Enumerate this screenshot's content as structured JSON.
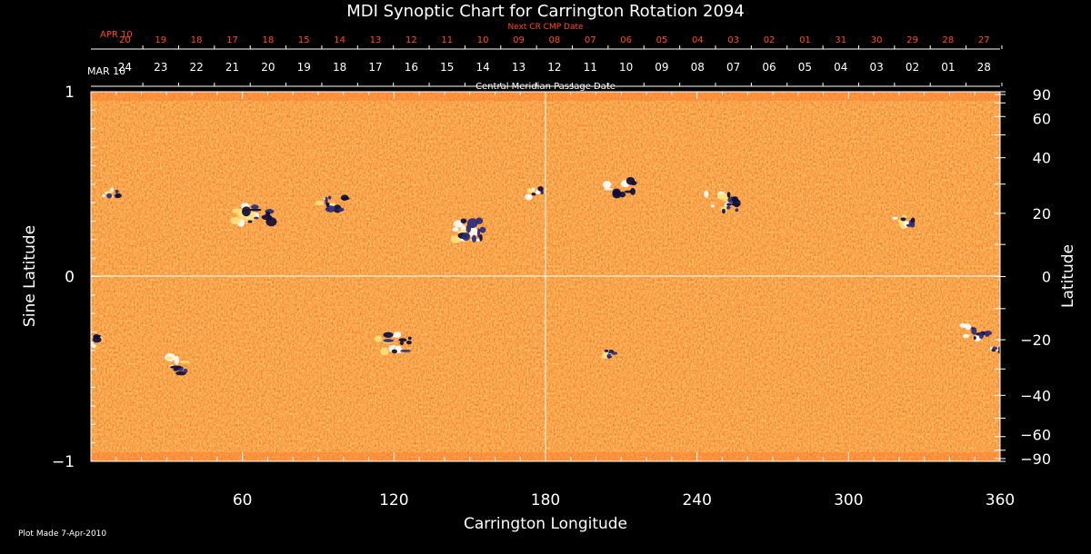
{
  "chart_data": {
    "type": "heatmap",
    "title": "MDI Synoptic Chart for Carrington Rotation 2094",
    "xlabel": "Carrington Longitude",
    "ylabel_left": "Sine Latitude",
    "ylabel_right": "Latitude",
    "xlim": [
      0,
      360
    ],
    "ylim": [
      -1,
      1
    ],
    "x_ticks": [
      60,
      120,
      180,
      240,
      300,
      360
    ],
    "left_y_ticks": [
      {
        "value": 1,
        "label": "1"
      },
      {
        "value": 0,
        "label": "0"
      },
      {
        "value": -1,
        "label": "−1"
      }
    ],
    "right_y_ticks": [
      90,
      60,
      40,
      20,
      0,
      -20,
      -40,
      -60,
      -90
    ],
    "right_y_tick_labels": [
      "90",
      "60",
      "40",
      "20",
      "0",
      "−20",
      "−40",
      "−60",
      "−90"
    ],
    "right_axis_scale": "sine-latitude",
    "grid_lines": {
      "x": [
        180
      ],
      "y": [
        0
      ]
    },
    "top_axis_1": {
      "title": "Next CR CMP Date",
      "start_label": "APR 10",
      "labels": [
        "20",
        "19",
        "18",
        "17",
        "18",
        "15",
        "14",
        "13",
        "12",
        "11",
        "10",
        "09",
        "08",
        "07",
        "06",
        "05",
        "04",
        "03",
        "02",
        "01",
        "31",
        "30",
        "29",
        "28",
        "27"
      ],
      "color": "#ff4a1e"
    },
    "top_axis_2": {
      "title": "Central Meridian Passage Date",
      "start_label": "MAR 10",
      "labels": [
        "24",
        "23",
        "22",
        "21",
        "20",
        "19",
        "18",
        "17",
        "16",
        "15",
        "14",
        "13",
        "12",
        "11",
        "10",
        "09",
        "08",
        "07",
        "06",
        "05",
        "04",
        "03",
        "02",
        "01",
        "28"
      ],
      "color": "#ffffff"
    },
    "colormap": [
      "#1c1c5e",
      "#8a1a00",
      "#e84a10",
      "#ff8a20",
      "#ffe060",
      "#ffffff"
    ],
    "footnote": "Plot Made  7-Apr-2010",
    "active_regions": [
      {
        "lon": 8,
        "sinlat": 0.45,
        "pos": 0.7,
        "neg": 0.4,
        "size": 8
      },
      {
        "lon": 64,
        "sinlat": 0.34,
        "pos": 1.0,
        "neg": 0.9,
        "size": 18
      },
      {
        "lon": 95,
        "sinlat": 0.4,
        "pos": 0.4,
        "neg": 0.9,
        "size": 14
      },
      {
        "lon": 150,
        "sinlat": 0.25,
        "pos": 1.0,
        "neg": 1.0,
        "size": 18
      },
      {
        "lon": 176,
        "sinlat": 0.45,
        "pos": 0.6,
        "neg": 0.3,
        "size": 10
      },
      {
        "lon": 210,
        "sinlat": 0.48,
        "pos": 0.3,
        "neg": 0.8,
        "size": 14
      },
      {
        "lon": 250,
        "sinlat": 0.4,
        "pos": 0.7,
        "neg": 0.9,
        "size": 16
      },
      {
        "lon": 322,
        "sinlat": 0.3,
        "pos": 0.8,
        "neg": 0.5,
        "size": 10
      },
      {
        "lon": 2,
        "sinlat": -0.35,
        "pos": 0.8,
        "neg": 0.3,
        "size": 12
      },
      {
        "lon": 35,
        "sinlat": -0.48,
        "pos": 0.5,
        "neg": 0.6,
        "size": 16
      },
      {
        "lon": 120,
        "sinlat": -0.36,
        "pos": 0.9,
        "neg": 0.8,
        "size": 16
      },
      {
        "lon": 205,
        "sinlat": -0.42,
        "pos": 0.7,
        "neg": 0.6,
        "size": 7
      },
      {
        "lon": 350,
        "sinlat": -0.3,
        "pos": 0.8,
        "neg": 0.8,
        "size": 12
      },
      {
        "lon": 358,
        "sinlat": -0.4,
        "pos": 0.3,
        "neg": 0.7,
        "size": 6
      }
    ]
  }
}
